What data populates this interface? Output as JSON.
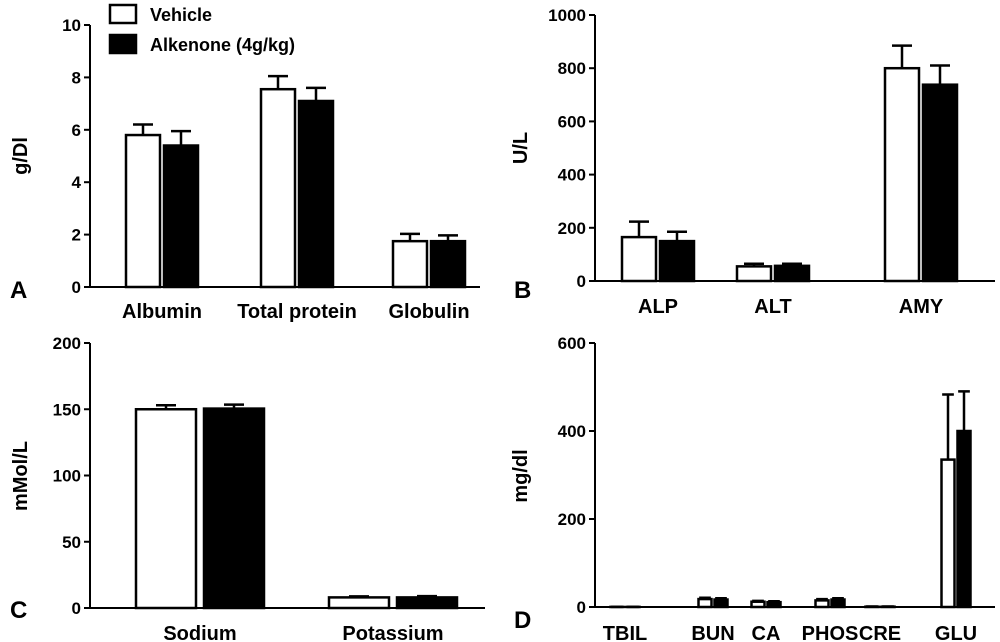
{
  "legend": {
    "series": [
      {
        "name": "Vehicle",
        "color": "#ffffff"
      },
      {
        "name": "Alkenone (4g/kg)",
        "color": "#000000"
      }
    ]
  },
  "chart_data": [
    {
      "panel": "A",
      "type": "bar",
      "ylabel": "g/Dl",
      "ylim": [
        0,
        10
      ],
      "yticks": [
        0,
        2,
        4,
        6,
        8,
        10
      ],
      "categories": [
        "Albumin",
        "Total protein",
        "Globulin"
      ],
      "series": [
        {
          "name": "Vehicle",
          "values": [
            5.8,
            7.55,
            1.75
          ],
          "errors": [
            0.4,
            0.5,
            0.28
          ]
        },
        {
          "name": "Alkenone (4g/kg)",
          "values": [
            5.4,
            7.1,
            1.75
          ],
          "errors": [
            0.55,
            0.5,
            0.22
          ]
        }
      ]
    },
    {
      "panel": "B",
      "type": "bar",
      "ylabel": "U/L",
      "ylim": [
        0,
        1000
      ],
      "yticks": [
        0,
        200,
        400,
        600,
        800,
        1000
      ],
      "categories": [
        "ALP",
        "ALT",
        "AMY"
      ],
      "series": [
        {
          "name": "Vehicle",
          "values": [
            165,
            55,
            800
          ],
          "errors": [
            58,
            10,
            85
          ]
        },
        {
          "name": "Alkenone (4g/kg)",
          "values": [
            150,
            57,
            738
          ],
          "errors": [
            35,
            8,
            72
          ]
        }
      ]
    },
    {
      "panel": "C",
      "type": "bar",
      "ylabel": "mMol/L",
      "ylim": [
        0,
        200
      ],
      "yticks": [
        0,
        50,
        100,
        150,
        200
      ],
      "categories": [
        "Sodium",
        "Potassium"
      ],
      "series": [
        {
          "name": "Vehicle",
          "values": [
            150,
            8
          ],
          "errors": [
            3,
            0.8
          ]
        },
        {
          "name": "Alkenone (4g/kg)",
          "values": [
            150.5,
            8
          ],
          "errors": [
            3,
            1
          ]
        }
      ]
    },
    {
      "panel": "D",
      "type": "bar",
      "ylabel": "mg/dl",
      "ylim": [
        0,
        600
      ],
      "yticks": [
        0,
        200,
        400,
        600
      ],
      "categories": [
        "TBIL",
        "BUN",
        "CA",
        "PHOS",
        "CRE",
        "GLU"
      ],
      "series": [
        {
          "name": "Vehicle",
          "values": [
            0.3,
            18,
            12,
            15,
            0.8,
            335
          ],
          "errors": [
            0.1,
            3,
            2,
            3,
            0.2,
            148
          ]
        },
        {
          "name": "Alkenone (4g/kg)",
          "values": [
            0.3,
            17,
            11,
            17,
            0.8,
            400
          ],
          "errors": [
            0.1,
            3,
            2,
            3,
            0.2,
            90
          ]
        }
      ]
    }
  ]
}
